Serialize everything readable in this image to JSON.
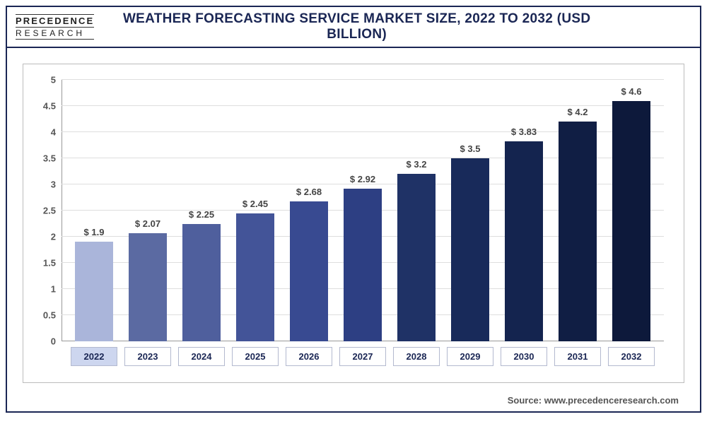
{
  "logo": {
    "line1": "PRECEDENCE",
    "line2": "RESEARCH"
  },
  "title": "WEATHER FORECASTING SERVICE MARKET SIZE, 2022 TO 2032 (USD BILLION)",
  "source": "Source: www.precedenceresearch.com",
  "chart": {
    "type": "bar",
    "categories": [
      "2022",
      "2023",
      "2024",
      "2025",
      "2026",
      "2027",
      "2028",
      "2029",
      "2030",
      "2031",
      "2032"
    ],
    "values": [
      1.9,
      2.07,
      2.25,
      2.45,
      2.68,
      2.92,
      3.2,
      3.5,
      3.83,
      4.2,
      4.6
    ],
    "value_labels": [
      "$ 1.9",
      "$ 2.07",
      "$ 2.25",
      "$ 2.45",
      "$ 2.68",
      "$ 2.92",
      "$ 3.2",
      "$ 3.5",
      "$ 3.83",
      "$ 4.2",
      "$ 4.6"
    ],
    "bar_colors": [
      "#aab5da",
      "#5b6aa2",
      "#4f5f9d",
      "#435498",
      "#384a91",
      "#2d3f83",
      "#1f3266",
      "#182a5a",
      "#14244f",
      "#101e44",
      "#0d193b"
    ],
    "ylim": [
      0,
      5
    ],
    "ytick_step": 0.5,
    "yticks": [
      "0",
      "0.5",
      "1",
      "1.5",
      "2",
      "2.5",
      "3",
      "3.5",
      "4",
      "4.5",
      "5"
    ],
    "grid_color": "#dedede",
    "axis_color": "#999999",
    "background_color": "#ffffff",
    "title_fontsize": 19,
    "label_fontsize": 13,
    "bar_width": 0.72,
    "highlight_category": "2022",
    "highlight_bg": "#cdd6ef",
    "border_color": "#1a2654"
  }
}
